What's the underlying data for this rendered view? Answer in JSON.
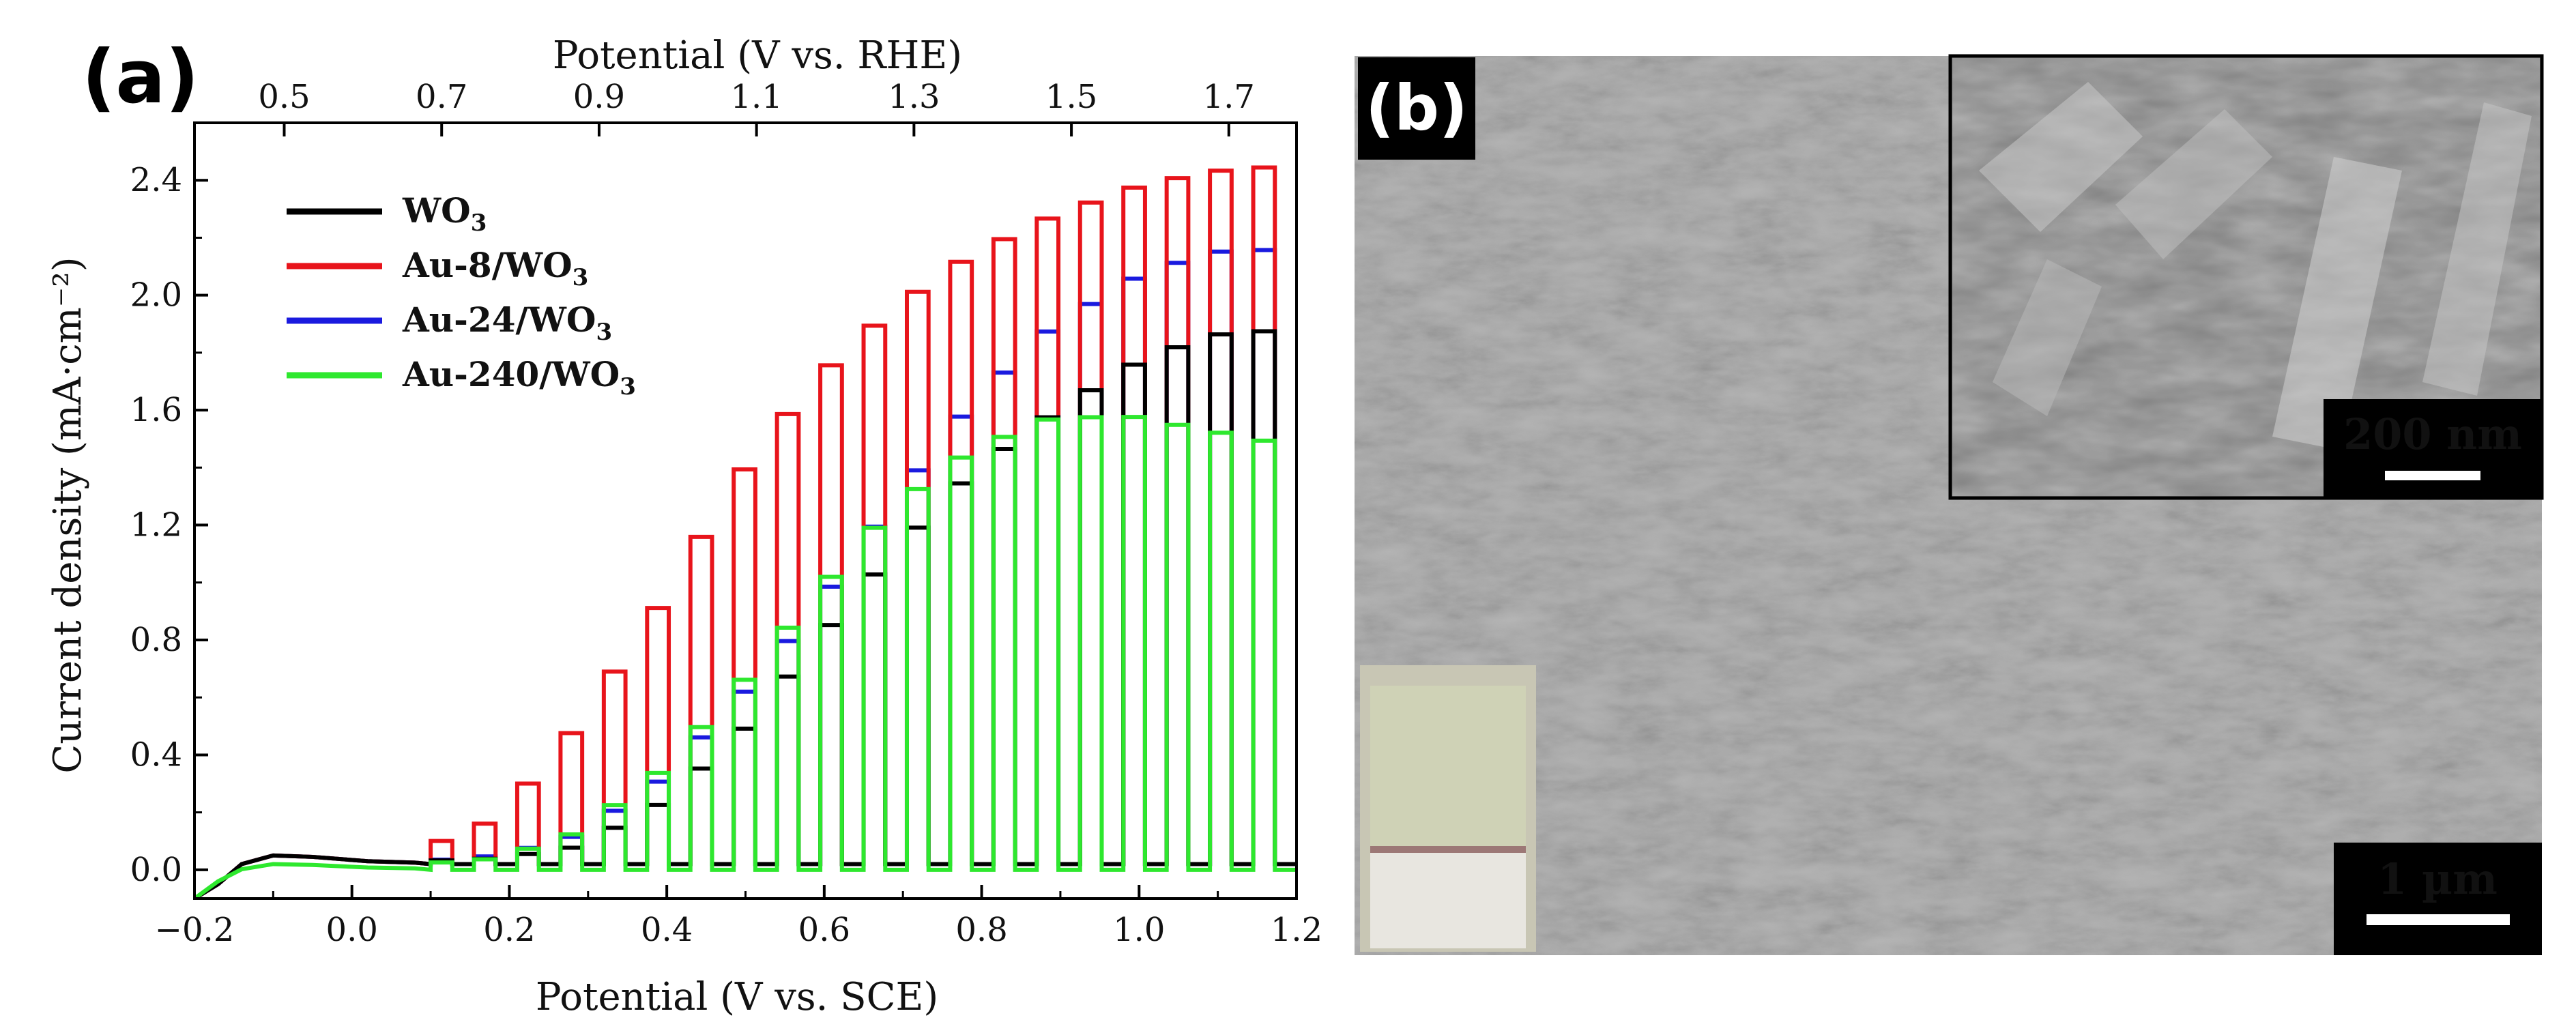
{
  "chart_data": [
    {
      "panel": "(a)",
      "type": "line",
      "xlabel": "Potential  (V vs. SCE)",
      "xlabel_top": "Potential  (V vs. RHE)",
      "ylabel": "Current density (mA·cm⁻²)",
      "xlim": [
        -0.2,
        1.2
      ],
      "ylim": [
        -0.1,
        2.6
      ],
      "x_ticks": [
        "-0.2",
        "0.0",
        "0.2",
        "0.4",
        "0.6",
        "0.8",
        "1.0",
        "1.2"
      ],
      "x_tick_values": [
        -0.2,
        0.0,
        0.2,
        0.4,
        0.6,
        0.8,
        1.0,
        1.2
      ],
      "top_ticks": [
        "0.5",
        "0.7",
        "0.9",
        "1.1",
        "1.3",
        "1.5",
        "1.7"
      ],
      "top_tick_values": [
        0.5,
        0.7,
        0.9,
        1.1,
        1.3,
        1.5,
        1.7
      ],
      "rhe_offset": 0.586,
      "y_ticks": [
        "0.0",
        "0.4",
        "0.8",
        "1.2",
        "1.6",
        "2.0",
        "2.4"
      ],
      "y_tick_values": [
        0.0,
        0.4,
        0.8,
        1.2,
        1.6,
        2.0,
        2.4
      ],
      "chopped_light": true,
      "chop_start": 0.1,
      "chop_period": 0.055,
      "legend_position": "top-left",
      "series": [
        {
          "name": "WO",
          "sub": "3",
          "color": "#000000",
          "x": [
            0.1,
            0.2,
            0.3,
            0.4,
            0.5,
            0.6,
            0.7,
            0.8,
            0.9,
            1.0,
            1.1,
            1.2
          ],
          "light": [
            0.03,
            0.04,
            0.08,
            0.22,
            0.45,
            0.78,
            1.1,
            1.38,
            1.58,
            1.75,
            1.86,
            1.88
          ],
          "dark": 0.02
        },
        {
          "name": "Au-8/WO",
          "sub": "3",
          "color": "#e8141b",
          "x": [
            0.1,
            0.2,
            0.3,
            0.4,
            0.5,
            0.6,
            0.7,
            0.8,
            0.9,
            1.0,
            1.1,
            1.2
          ],
          "light": [
            0.07,
            0.18,
            0.5,
            0.9,
            1.35,
            1.7,
            1.95,
            2.14,
            2.27,
            2.37,
            2.43,
            2.45
          ],
          "dark": 0.02
        },
        {
          "name": "Au-24/WO",
          "sub": "3",
          "color": "#1a1adf",
          "x": [
            0.1,
            0.2,
            0.3,
            0.4,
            0.5,
            0.6,
            0.7,
            0.8,
            0.9,
            1.0,
            1.1,
            1.2
          ],
          "light": [
            0.03,
            0.05,
            0.12,
            0.3,
            0.58,
            0.9,
            1.28,
            1.62,
            1.88,
            2.05,
            2.15,
            2.16
          ],
          "dark": 0.02
        },
        {
          "name": "Au-240/WO",
          "sub": "3",
          "color": "#2ee82e",
          "x": [
            0.1,
            0.2,
            0.3,
            0.4,
            0.5,
            0.6,
            0.7,
            0.8,
            0.9,
            1.0,
            1.1,
            1.2
          ],
          "light": [
            0.02,
            0.04,
            0.13,
            0.33,
            0.62,
            0.95,
            1.26,
            1.46,
            1.57,
            1.58,
            1.53,
            1.48
          ],
          "dark": 0.0
        }
      ]
    }
  ],
  "panel_b": {
    "label": "(b)",
    "inset_scale": "200 nm",
    "main_scale": "1 µm"
  }
}
